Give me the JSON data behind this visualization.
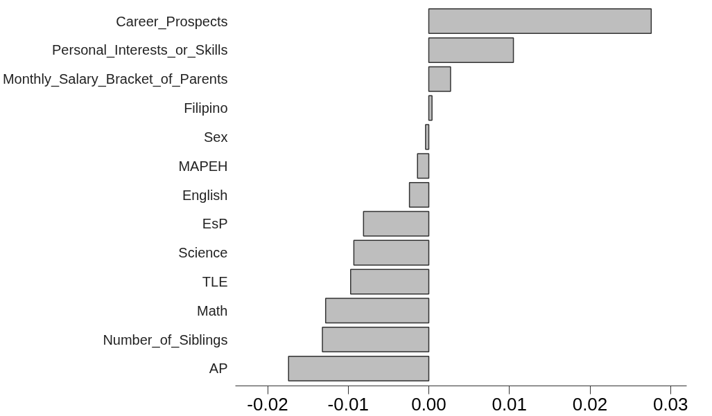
{
  "chart_data": {
    "type": "bar",
    "orientation": "horizontal",
    "categories": [
      "Career_Prospects",
      "Personal_Interests_or_Skills",
      "Monthly_Salary_Bracket_of_Parents",
      "Filipino",
      "Sex",
      "MAPEH",
      "English",
      "EsP",
      "Science",
      "TLE",
      "Math",
      "Number_of_Siblings",
      "AP"
    ],
    "values": [
      0.0276,
      0.0105,
      0.0027,
      0.0004,
      -0.0004,
      -0.0014,
      -0.0024,
      -0.0081,
      -0.0093,
      -0.0097,
      -0.0128,
      -0.0132,
      -0.0174
    ],
    "color": "#bebebe",
    "xlim": [
      -0.024,
      0.032
    ],
    "xticks": [
      {
        "value": -0.02,
        "label": "-0.02"
      },
      {
        "value": -0.01,
        "label": "-0.01"
      },
      {
        "value": 0,
        "label": "0.00"
      },
      {
        "value": 0.01,
        "label": "0.01"
      },
      {
        "value": 0.02,
        "label": "0.02"
      },
      {
        "value": 0.03,
        "label": "0.03"
      }
    ],
    "grid": false
  }
}
